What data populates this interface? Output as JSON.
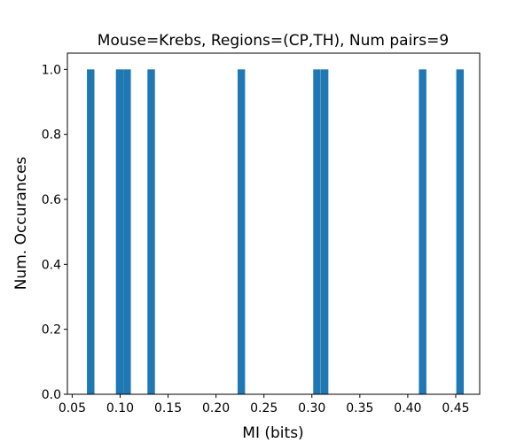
{
  "chart_data": {
    "type": "bar",
    "title": "Mouse=Krebs, Regions=(CP,TH), Num pairs=9",
    "xlabel": "MI (bits)",
    "ylabel": "Num. Occurances",
    "xlim": [
      0.045,
      0.475
    ],
    "ylim": [
      0.0,
      1.05
    ],
    "bar_color": "#1f77b4",
    "bin_width": 0.0078,
    "bars": [
      {
        "x": 0.0693,
        "value": 1.0
      },
      {
        "x": 0.0995,
        "value": 1.0
      },
      {
        "x": 0.1073,
        "value": 1.0
      },
      {
        "x": 0.1324,
        "value": 1.0
      },
      {
        "x": 0.2264,
        "value": 1.0
      },
      {
        "x": 0.3053,
        "value": 1.0
      },
      {
        "x": 0.3133,
        "value": 1.0
      },
      {
        "x": 0.4155,
        "value": 1.0
      },
      {
        "x": 0.4545,
        "value": 1.0
      }
    ],
    "xticks": [
      "0.05",
      "0.10",
      "0.15",
      "0.20",
      "0.25",
      "0.30",
      "0.35",
      "0.40",
      "0.45"
    ],
    "xtick_values": [
      0.05,
      0.1,
      0.15,
      0.2,
      0.25,
      0.3,
      0.35,
      0.4,
      0.45
    ],
    "yticks": [
      "0.0",
      "0.2",
      "0.4",
      "0.6",
      "0.8",
      "1.0"
    ],
    "ytick_values": [
      0.0,
      0.2,
      0.4,
      0.6,
      0.8,
      1.0
    ],
    "grid": false,
    "legend": "none"
  }
}
